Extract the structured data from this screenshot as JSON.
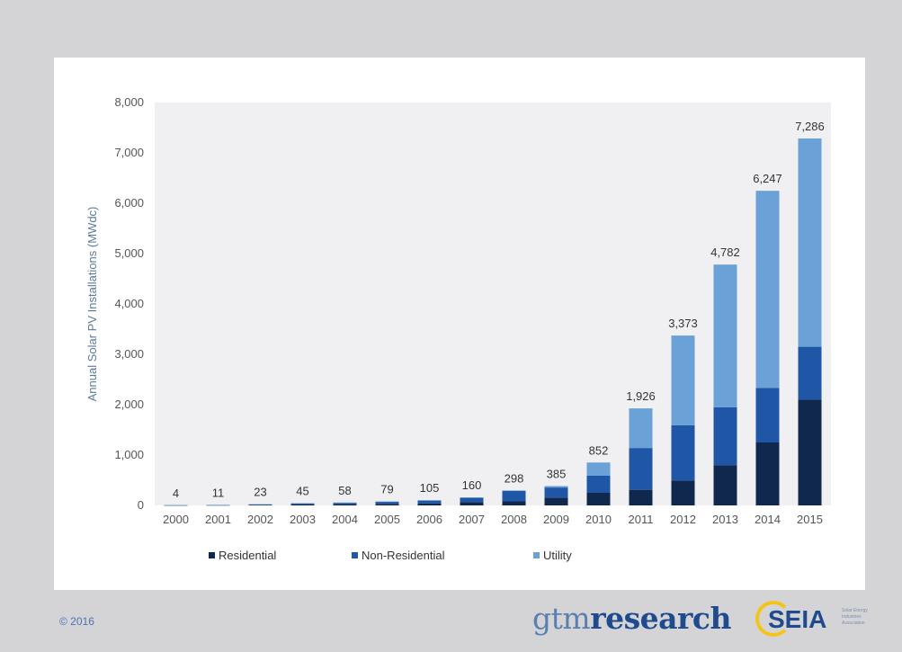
{
  "footer": {
    "copyright": "© 2016",
    "gtm_logo_light": "gtm",
    "gtm_logo_bold": "research",
    "seia_logo": "SEIA",
    "seia_tagline": "Solar Energy Industries Association"
  },
  "chart_data": {
    "type": "bar",
    "stacked": true,
    "title": "",
    "xlabel": "",
    "ylabel": "Annual Solar PV Installations (MWdc)",
    "ylim": [
      0,
      8000
    ],
    "yticks": [
      0,
      1000,
      2000,
      3000,
      4000,
      5000,
      6000,
      7000,
      8000
    ],
    "ytick_labels": [
      "0",
      "1,000",
      "2,000",
      "3,000",
      "4,000",
      "5,000",
      "6,000",
      "7,000",
      "8,000"
    ],
    "grid": false,
    "legend_position": "bottom",
    "categories": [
      "2000",
      "2001",
      "2002",
      "2003",
      "2004",
      "2005",
      "2006",
      "2007",
      "2008",
      "2009",
      "2010",
      "2011",
      "2012",
      "2013",
      "2014",
      "2015"
    ],
    "totals": [
      4,
      11,
      23,
      45,
      58,
      79,
      105,
      160,
      298,
      385,
      852,
      1926,
      3373,
      4782,
      6247,
      7286
    ],
    "total_labels": [
      "4",
      "11",
      "23",
      "45",
      "58",
      "79",
      "105",
      "160",
      "298",
      "385",
      "852",
      "1,926",
      "3,373",
      "4,782",
      "6,247",
      "7,286"
    ],
    "series": [
      {
        "name": "Residential",
        "color": "#10284e",
        "values": [
          2,
          5,
          10,
          20,
          25,
          30,
          40,
          65,
          80,
          155,
          250,
          310,
          490,
          800,
          1250,
          2100
        ]
      },
      {
        "name": "Non-Residential",
        "color": "#1f56a6",
        "values": [
          1,
          4,
          10,
          20,
          25,
          40,
          55,
          85,
          210,
          200,
          340,
          830,
          1100,
          1150,
          1080,
          1050
        ]
      },
      {
        "name": "Utility",
        "color": "#6aa1d6",
        "values": [
          1,
          2,
          3,
          5,
          8,
          9,
          10,
          10,
          8,
          30,
          262,
          786,
          1783,
          2832,
          3917,
          4136
        ]
      }
    ]
  }
}
